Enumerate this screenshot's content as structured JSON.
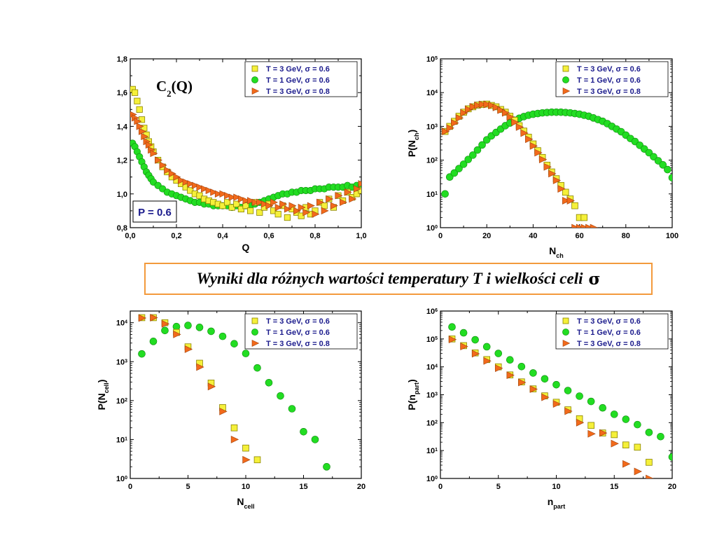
{
  "caption": {
    "text": "Wyniki dla różnych wartości temperatury T i wielkości celi",
    "symbol": "σ"
  },
  "colors": {
    "square": "#f5f03a",
    "circle": "#22dd22",
    "triangle": "#f26a1b",
    "legend_text": "#1a1a8c",
    "frame": "#000000",
    "caption_border": "#f39a3c"
  },
  "chart_data": [
    {
      "type": "scatter",
      "title": "C2(Q)",
      "xlabel": "Q",
      "ylabel": "",
      "annotation": "P = 0.6",
      "xlim": [
        0,
        1.0
      ],
      "ylim": [
        0.8,
        1.8
      ],
      "yscale": "linear",
      "xticks": [
        0,
        0.2,
        0.4,
        0.6,
        0.8,
        1.0
      ],
      "xticklabels": [
        "0,0",
        "0,2",
        "0,4",
        "0,6",
        "0,8",
        "1,0"
      ],
      "yticks": [
        0.8,
        1.0,
        1.2,
        1.4,
        1.6,
        1.8
      ],
      "yticklabels": [
        "0,8",
        "1,0",
        "1,2",
        "1,4",
        "1,6",
        "1,8"
      ],
      "legend_position": "top-right",
      "series": [
        {
          "name": "T = 3 GeV, σ = 0.6",
          "marker": "square",
          "x": [
            0.01,
            0.02,
            0.03,
            0.04,
            0.05,
            0.06,
            0.07,
            0.08,
            0.09,
            0.1,
            0.12,
            0.14,
            0.16,
            0.18,
            0.2,
            0.22,
            0.24,
            0.26,
            0.28,
            0.3,
            0.32,
            0.34,
            0.36,
            0.38,
            0.4,
            0.42,
            0.44,
            0.46,
            0.48,
            0.5,
            0.52,
            0.54,
            0.56,
            0.58,
            0.6,
            0.62,
            0.64,
            0.66,
            0.68,
            0.7,
            0.72,
            0.74,
            0.76,
            0.78,
            0.8,
            0.82,
            0.84,
            0.86,
            0.88,
            0.9,
            0.92,
            0.94,
            0.96,
            0.98,
            1.0
          ],
          "y": [
            1.62,
            1.6,
            1.55,
            1.5,
            1.44,
            1.39,
            1.35,
            1.31,
            1.28,
            1.25,
            1.2,
            1.16,
            1.13,
            1.1,
            1.08,
            1.06,
            1.04,
            1.02,
            1.0,
            0.99,
            0.97,
            0.96,
            0.95,
            0.94,
            0.93,
            0.95,
            0.92,
            0.94,
            0.91,
            0.93,
            0.9,
            0.95,
            0.89,
            0.92,
            0.94,
            0.9,
            0.88,
            0.93,
            0.86,
            0.91,
            0.89,
            0.87,
            0.92,
            0.88,
            0.9,
            0.95,
            0.93,
            0.97,
            0.92,
            0.99,
            0.96,
            1.01,
            0.98,
            1.0,
            1.02
          ]
        },
        {
          "name": "T = 1 GeV, σ = 0.6",
          "marker": "circle",
          "x": [
            0.01,
            0.02,
            0.03,
            0.04,
            0.05,
            0.06,
            0.07,
            0.08,
            0.09,
            0.1,
            0.12,
            0.14,
            0.16,
            0.18,
            0.2,
            0.22,
            0.24,
            0.26,
            0.28,
            0.3,
            0.32,
            0.34,
            0.36,
            0.38,
            0.4,
            0.42,
            0.44,
            0.46,
            0.48,
            0.5,
            0.52,
            0.54,
            0.56,
            0.58,
            0.6,
            0.62,
            0.64,
            0.66,
            0.68,
            0.7,
            0.72,
            0.74,
            0.76,
            0.78,
            0.8,
            0.82,
            0.84,
            0.86,
            0.88,
            0.9,
            0.92,
            0.94,
            0.96,
            0.98,
            1.0
          ],
          "y": [
            1.3,
            1.28,
            1.25,
            1.22,
            1.19,
            1.16,
            1.13,
            1.11,
            1.09,
            1.07,
            1.05,
            1.03,
            1.01,
            1.0,
            0.99,
            0.98,
            0.97,
            0.96,
            0.95,
            0.95,
            0.94,
            0.94,
            0.93,
            0.93,
            0.93,
            0.93,
            0.92,
            0.93,
            0.92,
            0.93,
            0.93,
            0.94,
            0.95,
            0.96,
            0.97,
            0.98,
            0.99,
            1.0,
            1.0,
            1.01,
            1.01,
            1.02,
            1.02,
            1.02,
            1.03,
            1.03,
            1.03,
            1.04,
            1.04,
            1.04,
            1.04,
            1.05,
            1.04,
            1.05,
            1.05
          ]
        },
        {
          "name": "T = 3 GeV, σ = 0.8",
          "marker": "triangle",
          "x": [
            0.01,
            0.02,
            0.03,
            0.04,
            0.05,
            0.06,
            0.07,
            0.08,
            0.09,
            0.1,
            0.12,
            0.14,
            0.16,
            0.18,
            0.2,
            0.22,
            0.24,
            0.26,
            0.28,
            0.3,
            0.32,
            0.34,
            0.36,
            0.38,
            0.4,
            0.42,
            0.44,
            0.46,
            0.48,
            0.5,
            0.52,
            0.54,
            0.56,
            0.58,
            0.6,
            0.62,
            0.64,
            0.66,
            0.68,
            0.7,
            0.72,
            0.74,
            0.76,
            0.78,
            0.8,
            0.82,
            0.84,
            0.86,
            0.88,
            0.9,
            0.92,
            0.94,
            0.96,
            0.98,
            1.0
          ],
          "y": [
            1.47,
            1.45,
            1.43,
            1.4,
            1.37,
            1.34,
            1.31,
            1.29,
            1.26,
            1.24,
            1.2,
            1.17,
            1.14,
            1.12,
            1.1,
            1.08,
            1.07,
            1.06,
            1.05,
            1.04,
            1.03,
            1.02,
            1.01,
            1.0,
            1.0,
            0.99,
            0.98,
            0.98,
            0.97,
            0.96,
            0.96,
            0.95,
            0.95,
            0.94,
            0.93,
            0.95,
            0.92,
            0.94,
            0.91,
            0.93,
            0.9,
            0.92,
            0.89,
            0.93,
            0.88,
            0.95,
            0.9,
            0.97,
            0.93,
            0.99,
            0.95,
            1.01,
            0.97,
            1.03,
            1.06
          ]
        }
      ]
    },
    {
      "type": "scatter",
      "title": "",
      "xlabel": "N_ch",
      "ylabel": "P(N_ch)",
      "xlim": [
        0,
        100
      ],
      "ylim": [
        0,
        5
      ],
      "yscale": "log10",
      "xticks": [
        0,
        20,
        40,
        60,
        80,
        100
      ],
      "xticklabels": [
        "0",
        "20",
        "40",
        "60",
        "80",
        "100"
      ],
      "yticks": [
        0,
        1,
        2,
        3,
        4,
        5
      ],
      "yticklabels": [
        "0",
        "1",
        "2",
        "3",
        "4",
        "5"
      ],
      "legend_position": "top-right",
      "series": [
        {
          "name": "T = 3 GeV, σ = 0.6",
          "marker": "square",
          "x": [
            2,
            4,
            6,
            8,
            10,
            12,
            14,
            16,
            18,
            20,
            22,
            24,
            26,
            28,
            30,
            32,
            34,
            36,
            38,
            40,
            42,
            44,
            46,
            48,
            50,
            52,
            54,
            56,
            58,
            60,
            62,
            64,
            66,
            68,
            70
          ],
          "y": [
            2.85,
            3.0,
            3.15,
            3.3,
            3.42,
            3.52,
            3.58,
            3.63,
            3.65,
            3.66,
            3.62,
            3.58,
            3.5,
            3.42,
            3.3,
            3.18,
            3.02,
            2.86,
            2.68,
            2.48,
            2.28,
            2.08,
            1.85,
            1.65,
            1.45,
            1.25,
            1.05,
            0.85,
            0.65,
            0.3,
            0.3,
            0.3,
            -0.4,
            -0.4,
            0.0
          ],
          "visible_points": 31
        },
        {
          "name": "T = 1 GeV, σ = 0.6",
          "marker": "circle",
          "x": [
            2,
            4,
            6,
            8,
            10,
            12,
            14,
            16,
            18,
            20,
            22,
            24,
            26,
            28,
            30,
            32,
            34,
            36,
            38,
            40,
            42,
            44,
            46,
            48,
            50,
            52,
            54,
            56,
            58,
            60,
            62,
            64,
            66,
            68,
            70,
            72,
            74,
            76,
            78,
            80,
            82,
            84,
            86,
            88,
            90,
            92,
            94,
            96,
            98,
            100
          ],
          "y": [
            1.0,
            1.5,
            1.62,
            1.75,
            1.88,
            2.02,
            2.15,
            2.3,
            2.45,
            2.6,
            2.72,
            2.82,
            2.92,
            3.02,
            3.1,
            3.18,
            3.24,
            3.29,
            3.33,
            3.36,
            3.38,
            3.4,
            3.41,
            3.42,
            3.42,
            3.42,
            3.41,
            3.4,
            3.38,
            3.36,
            3.33,
            3.3,
            3.25,
            3.2,
            3.15,
            3.08,
            3.0,
            2.92,
            2.84,
            2.74,
            2.64,
            2.55,
            2.44,
            2.33,
            2.22,
            2.1,
            1.98,
            1.86,
            1.72,
            1.48
          ]
        },
        {
          "name": "T = 3 GeV, σ = 0.8",
          "marker": "triangle",
          "x": [
            2,
            4,
            6,
            8,
            10,
            12,
            14,
            16,
            18,
            20,
            22,
            24,
            26,
            28,
            30,
            32,
            34,
            36,
            38,
            40,
            42,
            44,
            46,
            48,
            50,
            52,
            54,
            56,
            58,
            60,
            62,
            64,
            66
          ],
          "y": [
            2.85,
            2.95,
            3.1,
            3.25,
            3.4,
            3.5,
            3.58,
            3.62,
            3.65,
            3.65,
            3.62,
            3.56,
            3.48,
            3.4,
            3.28,
            3.12,
            2.98,
            2.8,
            2.62,
            2.42,
            2.22,
            2.02,
            1.8,
            1.6,
            1.4,
            1.15,
            0.8,
            0.8,
            0.0,
            0.0,
            0.0,
            0.0,
            0.0
          ]
        }
      ]
    },
    {
      "type": "scatter",
      "title": "",
      "xlabel": "N_cell",
      "ylabel": "P(N_cell)",
      "xlim": [
        0,
        20
      ],
      "ylim": [
        0,
        4.3
      ],
      "yscale": "log10",
      "xticks": [
        0,
        5,
        10,
        15,
        20
      ],
      "xticklabels": [
        "0",
        "5",
        "10",
        "15",
        "20"
      ],
      "yticks": [
        0,
        1,
        2,
        3,
        4
      ],
      "yticklabels": [
        "0",
        "1",
        "2",
        "3",
        "4"
      ],
      "legend_position": "top-right",
      "series": [
        {
          "name": "T = 3 GeV, σ = 0.6",
          "marker": "square",
          "x": [
            1,
            2,
            3,
            4,
            5,
            6,
            7,
            8,
            9,
            10,
            11
          ],
          "y": [
            4.13,
            4.13,
            4.0,
            3.75,
            3.38,
            2.96,
            2.45,
            1.82,
            1.3,
            0.78,
            0.48
          ]
        },
        {
          "name": "T = 1 GeV, σ = 0.6",
          "marker": "circle",
          "x": [
            1,
            2,
            3,
            4,
            5,
            6,
            7,
            8,
            9,
            10,
            11,
            12,
            13,
            14,
            15,
            16,
            17
          ],
          "y": [
            3.2,
            3.52,
            3.8,
            3.9,
            3.93,
            3.88,
            3.78,
            3.65,
            3.46,
            3.21,
            2.84,
            2.46,
            2.12,
            1.79,
            1.2,
            1.0,
            0.3
          ]
        },
        {
          "name": "T = 3 GeV, σ = 0.8",
          "marker": "triangle",
          "x": [
            1,
            2,
            3,
            4,
            5,
            6,
            7,
            8,
            9,
            10
          ],
          "y": [
            4.12,
            4.13,
            3.97,
            3.7,
            3.32,
            2.86,
            2.36,
            1.72,
            1.0,
            0.48
          ]
        }
      ]
    },
    {
      "type": "scatter",
      "title": "",
      "xlabel": "n_part",
      "ylabel": "P(n_part)",
      "xlim": [
        0,
        20
      ],
      "ylim": [
        0,
        6
      ],
      "yscale": "log10",
      "xticks": [
        0,
        5,
        10,
        15,
        20
      ],
      "xticklabels": [
        "0",
        "5",
        "10",
        "15",
        "20"
      ],
      "yticks": [
        0,
        1,
        2,
        3,
        4,
        5,
        6
      ],
      "yticklabels": [
        "0",
        "1",
        "2",
        "3",
        "4",
        "5",
        "6"
      ],
      "legend_position": "top-right",
      "series": [
        {
          "name": "T = 3 GeV, σ = 0.6",
          "marker": "square",
          "x": [
            1,
            2,
            3,
            4,
            5,
            6,
            7,
            8,
            9,
            10,
            11,
            12,
            13,
            14,
            15,
            16,
            17,
            18
          ],
          "y": [
            5.0,
            4.76,
            4.5,
            4.26,
            4.0,
            3.71,
            3.46,
            3.21,
            2.96,
            2.73,
            2.46,
            2.14,
            1.9,
            1.63,
            1.57,
            1.2,
            1.12,
            0.58
          ]
        },
        {
          "name": "T = 1 GeV, σ = 0.6",
          "marker": "circle",
          "x": [
            1,
            2,
            3,
            4,
            5,
            6,
            7,
            8,
            9,
            10,
            11,
            12,
            13,
            14,
            15,
            16,
            17,
            18,
            19,
            20
          ],
          "y": [
            5.43,
            5.22,
            4.97,
            4.72,
            4.48,
            4.25,
            4.01,
            3.78,
            3.57,
            3.36,
            3.15,
            2.95,
            2.76,
            2.53,
            2.3,
            2.12,
            1.93,
            1.65,
            1.5,
            0.77
          ]
        },
        {
          "name": "T = 3 GeV, σ = 0.8",
          "marker": "triangle",
          "x": [
            1,
            2,
            3,
            4,
            5,
            6,
            7,
            8,
            9,
            10,
            11,
            12,
            13,
            14,
            15,
            16,
            17,
            18
          ],
          "y": [
            4.98,
            4.73,
            4.47,
            4.21,
            3.95,
            3.7,
            3.44,
            3.2,
            2.91,
            2.67,
            2.41,
            2.0,
            1.6,
            1.63,
            1.25,
            0.52,
            0.25,
            0.0
          ]
        }
      ]
    }
  ]
}
